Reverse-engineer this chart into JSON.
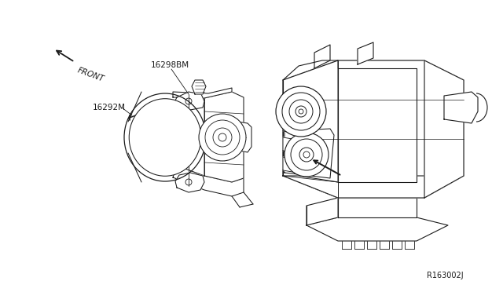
{
  "background_color": "#ffffff",
  "line_color": "#1a1a1a",
  "label_16298BM": "16298BM",
  "label_16292M": "16292M",
  "label_front": "FRONT",
  "label_ref": "R163002J",
  "figsize": [
    6.4,
    3.72
  ],
  "dpi": 100
}
